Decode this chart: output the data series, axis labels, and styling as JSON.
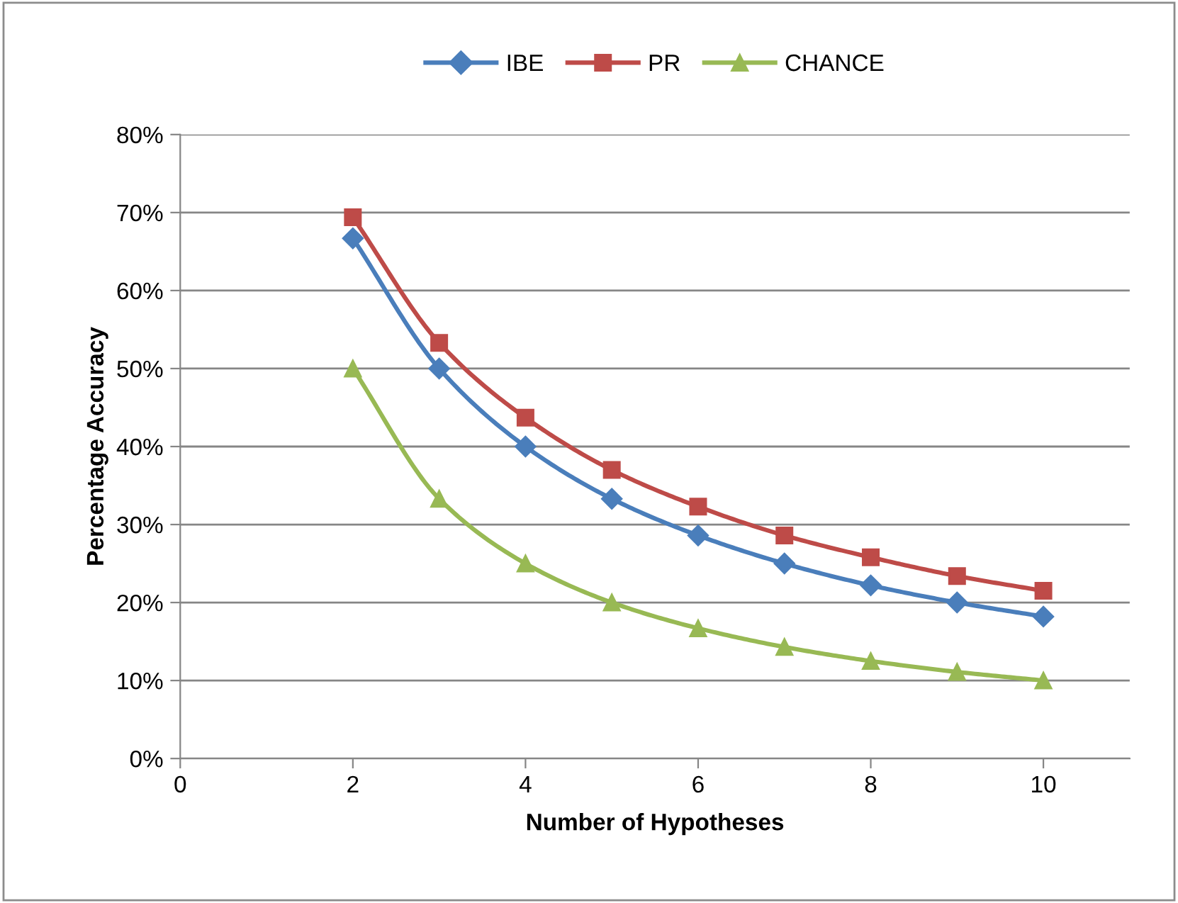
{
  "chart_data": {
    "type": "line",
    "xlabel": "Number of Hypotheses",
    "ylabel": "Percentage Accuracy",
    "x": [
      2,
      3,
      4,
      5,
      6,
      7,
      8,
      9,
      10
    ],
    "series": [
      {
        "name": "IBE",
        "color": "#4a7ebb",
        "marker": "diamond",
        "values": [
          66.7,
          50,
          40,
          33.3,
          28.6,
          25,
          22.2,
          20,
          18.2
        ]
      },
      {
        "name": "PR",
        "color": "#be4b48",
        "marker": "square",
        "values": [
          69.4,
          53.3,
          43.7,
          37,
          32.3,
          28.6,
          25.8,
          23.4,
          21.5
        ]
      },
      {
        "name": "CHANCE",
        "color": "#98b954",
        "marker": "triangle",
        "values": [
          50,
          33.3,
          25,
          20,
          16.7,
          14.3,
          12.5,
          11.1,
          10
        ]
      }
    ],
    "xlim": [
      0,
      11
    ],
    "xticks": [
      0,
      2,
      4,
      6,
      8,
      10
    ],
    "ylim": [
      0,
      80
    ],
    "yticks": [
      {
        "value": 0,
        "label": "0%"
      },
      {
        "value": 10,
        "label": "10%"
      },
      {
        "value": 20,
        "label": "20%"
      },
      {
        "value": 30,
        "label": "30%"
      },
      {
        "value": 40,
        "label": "40%"
      },
      {
        "value": 50,
        "label": "50%"
      },
      {
        "value": 60,
        "label": "60%"
      },
      {
        "value": 70,
        "label": "70%"
      },
      {
        "value": 80,
        "label": "80%"
      }
    ],
    "grid": "y",
    "legend": "top",
    "line_style": "solid"
  }
}
